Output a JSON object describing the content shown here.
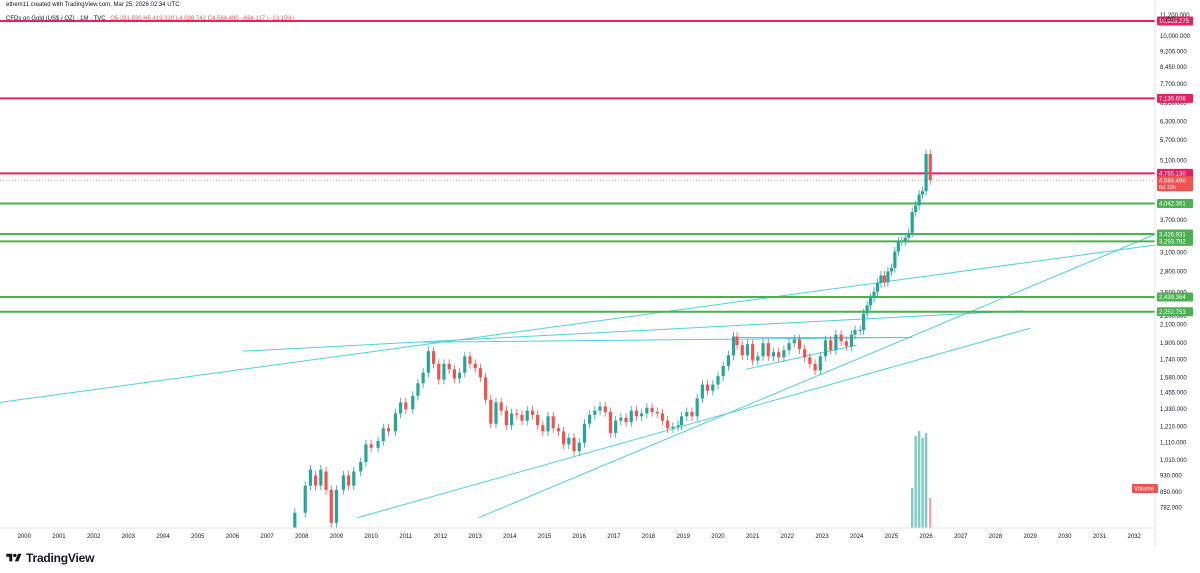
{
  "header": {
    "attribution": "ethem11 created with TradingView.com, Mar 25, 2026 02:34 UTC"
  },
  "symbol": {
    "name": "CFDs on Gold (US$ / OZ) · 1M · TVC",
    "ohlc": "O5,281.530 H5,419.320 L4,098.742 C4,584.490 −694.117 (−13.15%)"
  },
  "axis": {
    "currency": "USD"
  },
  "footer": {
    "brand": "TradingView"
  },
  "colors": {
    "accent_red": "#e91e63",
    "down_red": "#ef5350",
    "up_green": "#26a69a",
    "support_green": "#4caf50",
    "trendline_cyan": "#4dd0e1",
    "volume_teal": "#80cbc4"
  },
  "chart_data": {
    "type": "candlestick",
    "yscale": "log",
    "ylim": [
      700,
      11500
    ],
    "xlim": [
      1999.3,
      2032.6
    ],
    "x_ticks": [
      "2000",
      "2001",
      "2002",
      "2003",
      "2004",
      "2005",
      "2006",
      "2007",
      "2008",
      "2009",
      "2010",
      "2011",
      "2012",
      "2013",
      "2014",
      "2015",
      "2016",
      "2017",
      "2018",
      "2019",
      "2020",
      "2021",
      "2022",
      "2023",
      "2024",
      "2025",
      "2026",
      "2027",
      "2028",
      "2029",
      "2030",
      "2031",
      "2032"
    ],
    "y_ticks": [
      "11,200.000",
      "10,000.000",
      "9,200.000",
      "8,450.000",
      "7,700.000",
      "6,950.000",
      "6,300.000",
      "5,700.000",
      "5,100.000",
      "4,500.000",
      "3,700.000",
      "3,100.000",
      "2,800.000",
      "2,500.000",
      "2,200.000",
      "2,100.000",
      "1,900.000",
      "1,740.000",
      "1,580.000",
      "1,455.000",
      "1,330.000",
      "1,210.000",
      "1,110.000",
      "1,010.000",
      "930.000",
      "850.000",
      "782.000"
    ],
    "horizontal_levels": [
      {
        "label": "10,835.275",
        "value": 10835.275,
        "color": "#e91e63"
      },
      {
        "label": "7,135.606",
        "value": 7135.606,
        "color": "#e91e63"
      },
      {
        "label": "4,755.130",
        "value": 4755.13,
        "color": "#e91e63"
      },
      {
        "label": "4,042.361",
        "value": 4042.361,
        "color": "#4caf50"
      },
      {
        "label": "3,426.931",
        "value": 3426.931,
        "color": "#4caf50"
      },
      {
        "label": "3,293.782",
        "value": 3293.782,
        "color": "#4caf50"
      },
      {
        "label": "2,439.364",
        "value": 2439.364,
        "color": "#4caf50"
      },
      {
        "label": "2,252.753",
        "value": 2252.753,
        "color": "#4caf50"
      }
    ],
    "last_price": {
      "label": "4,584.490",
      "countdown": "6d 19h",
      "value": 4584.49
    },
    "trendlines": [
      {
        "x1": 1999.3,
        "y1": 1380,
        "x2": 2032.6,
        "y2": 3230
      },
      {
        "x1": 2006.3,
        "y1": 1820,
        "x2": 2028.8,
        "y2": 2265
      },
      {
        "x1": 2009.6,
        "y1": 740,
        "x2": 2029.0,
        "y2": 2060
      },
      {
        "x1": 2013.1,
        "y1": 740,
        "x2": 2032.6,
        "y2": 3420
      },
      {
        "x1": 2011.5,
        "y1": 1910,
        "x2": 2025.6,
        "y2": 1960
      },
      {
        "x1": 2020.6,
        "y1": 1960,
        "x2": 2025.6,
        "y2": 1960
      },
      {
        "x1": 2020.8,
        "y1": 1650,
        "x2": 2024.0,
        "y2": 1880
      }
    ],
    "candles": [
      [
        2007.8,
        690,
        760
      ],
      [
        2008.1,
        760,
        880
      ],
      [
        2008.25,
        880,
        960
      ],
      [
        2008.4,
        930,
        880
      ],
      [
        2008.55,
        880,
        960
      ],
      [
        2008.7,
        950,
        860
      ],
      [
        2008.85,
        860,
        720
      ],
      [
        2009.0,
        720,
        860
      ],
      [
        2009.2,
        860,
        930
      ],
      [
        2009.35,
        930,
        880
      ],
      [
        2009.5,
        880,
        950
      ],
      [
        2009.7,
        950,
        1000
      ],
      [
        2009.85,
        1000,
        1100
      ],
      [
        2010.0,
        1100,
        1080
      ],
      [
        2010.2,
        1080,
        1120
      ],
      [
        2010.35,
        1120,
        1200
      ],
      [
        2010.5,
        1200,
        1180
      ],
      [
        2010.7,
        1180,
        1300
      ],
      [
        2010.85,
        1300,
        1380
      ],
      [
        2011.0,
        1380,
        1330
      ],
      [
        2011.2,
        1330,
        1430
      ],
      [
        2011.35,
        1430,
        1530
      ],
      [
        2011.5,
        1530,
        1620
      ],
      [
        2011.65,
        1620,
        1820
      ],
      [
        2011.8,
        1820,
        1700
      ],
      [
        2011.95,
        1700,
        1560
      ],
      [
        2012.1,
        1560,
        1700
      ],
      [
        2012.25,
        1700,
        1650
      ],
      [
        2012.4,
        1650,
        1570
      ],
      [
        2012.55,
        1570,
        1620
      ],
      [
        2012.7,
        1620,
        1770
      ],
      [
        2012.85,
        1770,
        1700
      ],
      [
        2013.0,
        1700,
        1660
      ],
      [
        2013.15,
        1660,
        1580
      ],
      [
        2013.3,
        1580,
        1400
      ],
      [
        2013.45,
        1400,
        1230
      ],
      [
        2013.6,
        1230,
        1380
      ],
      [
        2013.75,
        1380,
        1320
      ],
      [
        2013.9,
        1320,
        1220
      ],
      [
        2014.05,
        1220,
        1300
      ],
      [
        2014.2,
        1300,
        1290
      ],
      [
        2014.35,
        1290,
        1250
      ],
      [
        2014.5,
        1250,
        1320
      ],
      [
        2014.65,
        1320,
        1290
      ],
      [
        2014.8,
        1290,
        1220
      ],
      [
        2014.95,
        1220,
        1180
      ],
      [
        2015.1,
        1180,
        1280
      ],
      [
        2015.25,
        1280,
        1200
      ],
      [
        2015.4,
        1200,
        1180
      ],
      [
        2015.55,
        1180,
        1100
      ],
      [
        2015.7,
        1100,
        1140
      ],
      [
        2015.85,
        1140,
        1060
      ],
      [
        2016.0,
        1060,
        1110
      ],
      [
        2016.15,
        1110,
        1230
      ],
      [
        2016.3,
        1230,
        1290
      ],
      [
        2016.45,
        1290,
        1320
      ],
      [
        2016.6,
        1320,
        1350
      ],
      [
        2016.75,
        1350,
        1310
      ],
      [
        2016.9,
        1310,
        1170
      ],
      [
        2017.05,
        1170,
        1250
      ],
      [
        2017.2,
        1250,
        1270
      ],
      [
        2017.35,
        1270,
        1240
      ],
      [
        2017.5,
        1240,
        1320
      ],
      [
        2017.65,
        1320,
        1280
      ],
      [
        2017.8,
        1280,
        1300
      ],
      [
        2017.95,
        1300,
        1340
      ],
      [
        2018.1,
        1340,
        1310
      ],
      [
        2018.25,
        1310,
        1300
      ],
      [
        2018.4,
        1300,
        1250
      ],
      [
        2018.55,
        1250,
        1200
      ],
      [
        2018.7,
        1200,
        1210
      ],
      [
        2018.85,
        1210,
        1220
      ],
      [
        2018.95,
        1220,
        1280
      ],
      [
        2019.1,
        1280,
        1310
      ],
      [
        2019.25,
        1310,
        1280
      ],
      [
        2019.4,
        1280,
        1410
      ],
      [
        2019.55,
        1410,
        1520
      ],
      [
        2019.7,
        1520,
        1470
      ],
      [
        2019.85,
        1470,
        1520
      ],
      [
        2020.0,
        1520,
        1590
      ],
      [
        2020.15,
        1590,
        1680
      ],
      [
        2020.3,
        1680,
        1780
      ],
      [
        2020.45,
        1780,
        1970
      ],
      [
        2020.55,
        1970,
        1880
      ],
      [
        2020.7,
        1880,
        1780
      ],
      [
        2020.85,
        1780,
        1890
      ],
      [
        2021.0,
        1890,
        1730
      ],
      [
        2021.15,
        1730,
        1770
      ],
      [
        2021.3,
        1770,
        1900
      ],
      [
        2021.45,
        1900,
        1770
      ],
      [
        2021.6,
        1770,
        1810
      ],
      [
        2021.75,
        1810,
        1760
      ],
      [
        2021.9,
        1760,
        1830
      ],
      [
        2022.05,
        1830,
        1900
      ],
      [
        2022.2,
        1900,
        1940
      ],
      [
        2022.35,
        1940,
        1840
      ],
      [
        2022.5,
        1840,
        1760
      ],
      [
        2022.65,
        1760,
        1700
      ],
      [
        2022.8,
        1700,
        1640
      ],
      [
        2022.95,
        1640,
        1770
      ],
      [
        2023.1,
        1770,
        1930
      ],
      [
        2023.25,
        1930,
        1830
      ],
      [
        2023.4,
        1830,
        1990
      ],
      [
        2023.55,
        1990,
        1920
      ],
      [
        2023.7,
        1920,
        1870
      ],
      [
        2023.85,
        1870,
        1990
      ],
      [
        2023.95,
        1990,
        2040
      ],
      [
        2024.1,
        2040,
        2040
      ],
      [
        2024.2,
        2040,
        2230
      ],
      [
        2024.3,
        2230,
        2330
      ],
      [
        2024.4,
        2330,
        2430
      ],
      [
        2024.5,
        2430,
        2510
      ],
      [
        2024.6,
        2510,
        2630
      ],
      [
        2024.7,
        2630,
        2740
      ],
      [
        2024.8,
        2740,
        2640
      ],
      [
        2024.9,
        2640,
        2800
      ],
      [
        2025.0,
        2800,
        2850
      ],
      [
        2025.1,
        2850,
        3120
      ],
      [
        2025.2,
        3120,
        3290
      ],
      [
        2025.3,
        3290,
        3300
      ],
      [
        2025.4,
        3300,
        3360
      ],
      [
        2025.5,
        3360,
        3450
      ],
      [
        2025.6,
        3450,
        3860
      ],
      [
        2025.7,
        3860,
        4000
      ],
      [
        2025.8,
        4000,
        4240
      ],
      [
        2025.9,
        4240,
        4320
      ],
      [
        2026.0,
        4320,
        5280
      ],
      [
        2026.12,
        5280,
        4584
      ]
    ],
    "volume": {
      "label": "Volume",
      "bars": [
        {
          "x": 2025.6,
          "value": 40
        },
        {
          "x": 2025.7,
          "value": 92
        },
        {
          "x": 2025.8,
          "value": 97
        },
        {
          "x": 2025.9,
          "value": 90
        },
        {
          "x": 2026.0,
          "value": 95
        },
        {
          "x": 2026.12,
          "value": 30
        }
      ]
    }
  }
}
